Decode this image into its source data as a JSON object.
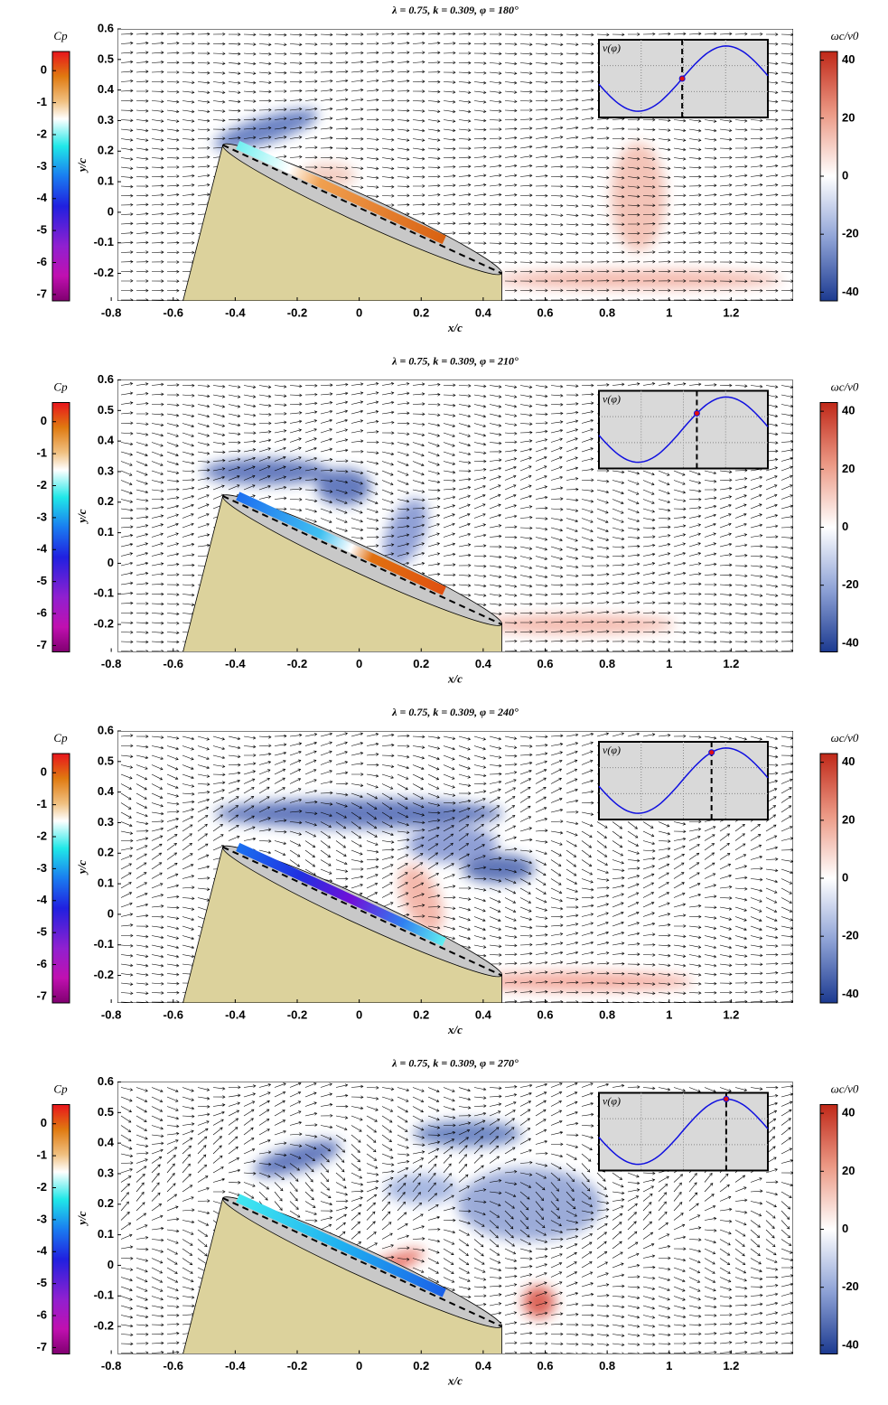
{
  "chart_data": [
    {
      "type": "flowfield",
      "title": "λ = 0.75, k = 0.309, φ = 180°",
      "xlabel": "x/c",
      "ylabel": "y/c",
      "xlim": [
        -0.78,
        1.4
      ],
      "ylim": [
        -0.29,
        0.6
      ],
      "xticks": [
        -0.8,
        -0.6,
        -0.4,
        -0.2,
        0,
        0.2,
        0.4,
        0.6,
        0.8,
        1,
        1.2
      ],
      "yticks": [
        -0.2,
        -0.1,
        0,
        0.1,
        0.2,
        0.3,
        0.4,
        0.5,
        0.6
      ],
      "cp_colorbar": {
        "label": "Cp",
        "lim": [
          -7.2,
          0.6
        ],
        "ticks": [
          0,
          -1,
          -2,
          -3,
          -4,
          -5,
          -6,
          -7
        ]
      },
      "vorticity_colorbar": {
        "label": "ωc/v0",
        "lim": [
          -43,
          43
        ],
        "ticks": [
          40,
          20,
          0,
          -20,
          -40
        ]
      },
      "inset": {
        "label": "v(φ)",
        "xlim": [
          10,
          355
        ],
        "phase": 180
      }
    },
    {
      "type": "flowfield",
      "title": "λ = 0.75, k = 0.309, φ = 210°",
      "xlabel": "x/c",
      "ylabel": "y/c",
      "xlim": [
        -0.78,
        1.4
      ],
      "ylim": [
        -0.29,
        0.6
      ],
      "xticks": [
        -0.8,
        -0.6,
        -0.4,
        -0.2,
        0,
        0.2,
        0.4,
        0.6,
        0.8,
        1,
        1.2
      ],
      "yticks": [
        -0.2,
        -0.1,
        0,
        0.1,
        0.2,
        0.3,
        0.4,
        0.5,
        0.6
      ],
      "cp_colorbar": {
        "label": "Cp",
        "lim": [
          -7.2,
          0.6
        ],
        "ticks": [
          0,
          -1,
          -2,
          -3,
          -4,
          -5,
          -6,
          -7
        ]
      },
      "vorticity_colorbar": {
        "label": "ωc/v0",
        "lim": [
          -43,
          43
        ],
        "ticks": [
          40,
          20,
          0,
          -20,
          -40
        ]
      },
      "inset": {
        "label": "v(φ)",
        "xlim": [
          10,
          355
        ],
        "phase": 210
      }
    },
    {
      "type": "flowfield",
      "title": "λ = 0.75, k = 0.309, φ = 240°",
      "xlabel": "x/c",
      "ylabel": "y/c",
      "xlim": [
        -0.78,
        1.4
      ],
      "ylim": [
        -0.29,
        0.6
      ],
      "xticks": [
        -0.8,
        -0.6,
        -0.4,
        -0.2,
        0,
        0.2,
        0.4,
        0.6,
        0.8,
        1,
        1.2
      ],
      "yticks": [
        -0.2,
        -0.1,
        0,
        0.1,
        0.2,
        0.3,
        0.4,
        0.5,
        0.6
      ],
      "cp_colorbar": {
        "label": "Cp",
        "lim": [
          -7.2,
          0.6
        ],
        "ticks": [
          0,
          -1,
          -2,
          -3,
          -4,
          -5,
          -6,
          -7
        ]
      },
      "vorticity_colorbar": {
        "label": "ωc/v0",
        "lim": [
          -43,
          43
        ],
        "ticks": [
          40,
          20,
          0,
          -20,
          -40
        ]
      },
      "inset": {
        "label": "v(φ)",
        "xlim": [
          10,
          355
        ],
        "phase": 240
      }
    },
    {
      "type": "flowfield",
      "title": "λ = 0.75, k = 0.309, φ = 270°",
      "xlabel": "x/c",
      "ylabel": "y/c",
      "xlim": [
        -0.78,
        1.4
      ],
      "ylim": [
        -0.29,
        0.6
      ],
      "xticks": [
        -0.8,
        -0.6,
        -0.4,
        -0.2,
        0,
        0.2,
        0.4,
        0.6,
        0.8,
        1,
        1.2
      ],
      "yticks": [
        -0.2,
        -0.1,
        0,
        0.1,
        0.2,
        0.3,
        0.4,
        0.5,
        0.6
      ],
      "cp_colorbar": {
        "label": "Cp",
        "lim": [
          -7.2,
          0.6
        ],
        "ticks": [
          0,
          -1,
          -2,
          -3,
          -4,
          -5,
          -6,
          -7
        ]
      },
      "vorticity_colorbar": {
        "label": "ωc/v0",
        "lim": [
          -43,
          43
        ],
        "ticks": [
          40,
          20,
          0,
          -20,
          -40
        ]
      },
      "inset": {
        "label": "v(φ)",
        "xlim": [
          10,
          355
        ],
        "phase": 270
      }
    }
  ]
}
